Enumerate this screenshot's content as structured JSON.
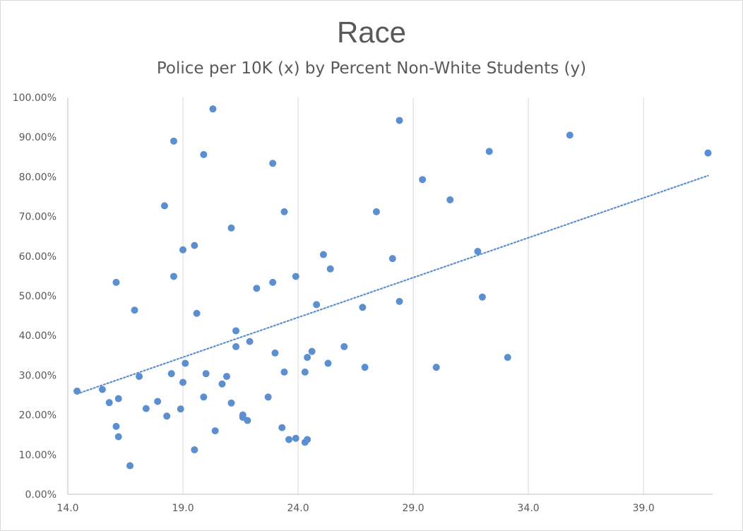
{
  "chart_data": {
    "type": "scatter",
    "title": "Race",
    "subtitle": "Police per 10K (x) by Percent Non-White Students (y)",
    "xlim": [
      14.0,
      42.0
    ],
    "ylim": [
      0,
      1.0
    ],
    "x_ticks": [
      "14.0",
      "19.0",
      "24.0",
      "29.0",
      "34.0",
      "39.0"
    ],
    "x_tick_values": [
      14,
      19,
      24,
      29,
      34,
      39
    ],
    "y_ticks": [
      "0.00%",
      "10.00%",
      "20.00%",
      "30.00%",
      "40.00%",
      "50.00%",
      "60.00%",
      "70.00%",
      "80.00%",
      "90.00%",
      "100.00%"
    ],
    "y_tick_values": [
      0,
      0.1,
      0.2,
      0.3,
      0.4,
      0.5,
      0.6,
      0.7,
      0.8,
      0.9,
      1.0
    ],
    "gridlines": "vertical",
    "point_color": "#5b8fd0",
    "trendline": {
      "type": "linear",
      "style": "dotted",
      "color": "#5b8fd0",
      "x": [
        14.4,
        41.8
      ],
      "y": [
        0.253,
        0.803
      ]
    },
    "points": [
      {
        "x": 14.4,
        "y": 0.26
      },
      {
        "x": 15.5,
        "y": 0.264
      },
      {
        "x": 15.8,
        "y": 0.231
      },
      {
        "x": 16.1,
        "y": 0.534
      },
      {
        "x": 16.1,
        "y": 0.171
      },
      {
        "x": 16.2,
        "y": 0.145
      },
      {
        "x": 16.2,
        "y": 0.241
      },
      {
        "x": 16.7,
        "y": 0.072
      },
      {
        "x": 16.9,
        "y": 0.464
      },
      {
        "x": 17.1,
        "y": 0.297
      },
      {
        "x": 17.4,
        "y": 0.216
      },
      {
        "x": 17.9,
        "y": 0.234
      },
      {
        "x": 18.2,
        "y": 0.727
      },
      {
        "x": 18.3,
        "y": 0.197
      },
      {
        "x": 18.5,
        "y": 0.304
      },
      {
        "x": 18.6,
        "y": 0.89
      },
      {
        "x": 18.6,
        "y": 0.549
      },
      {
        "x": 18.9,
        "y": 0.215
      },
      {
        "x": 19.0,
        "y": 0.616
      },
      {
        "x": 19.0,
        "y": 0.282
      },
      {
        "x": 19.1,
        "y": 0.33
      },
      {
        "x": 19.5,
        "y": 0.627
      },
      {
        "x": 19.5,
        "y": 0.112
      },
      {
        "x": 19.6,
        "y": 0.456
      },
      {
        "x": 19.9,
        "y": 0.856
      },
      {
        "x": 19.9,
        "y": 0.245
      },
      {
        "x": 20.0,
        "y": 0.304
      },
      {
        "x": 20.3,
        "y": 0.971
      },
      {
        "x": 20.4,
        "y": 0.16
      },
      {
        "x": 20.7,
        "y": 0.278
      },
      {
        "x": 20.9,
        "y": 0.297
      },
      {
        "x": 21.1,
        "y": 0.671
      },
      {
        "x": 21.1,
        "y": 0.23
      },
      {
        "x": 21.3,
        "y": 0.412
      },
      {
        "x": 21.3,
        "y": 0.372
      },
      {
        "x": 21.6,
        "y": 0.2
      },
      {
        "x": 21.6,
        "y": 0.194
      },
      {
        "x": 21.8,
        "y": 0.186
      },
      {
        "x": 21.9,
        "y": 0.385
      },
      {
        "x": 22.2,
        "y": 0.519
      },
      {
        "x": 22.7,
        "y": 0.245
      },
      {
        "x": 22.9,
        "y": 0.834
      },
      {
        "x": 22.9,
        "y": 0.534
      },
      {
        "x": 23.0,
        "y": 0.356
      },
      {
        "x": 23.3,
        "y": 0.168
      },
      {
        "x": 23.4,
        "y": 0.712
      },
      {
        "x": 23.4,
        "y": 0.308
      },
      {
        "x": 23.6,
        "y": 0.138
      },
      {
        "x": 23.9,
        "y": 0.141
      },
      {
        "x": 23.9,
        "y": 0.549
      },
      {
        "x": 24.3,
        "y": 0.131
      },
      {
        "x": 24.3,
        "y": 0.308
      },
      {
        "x": 24.4,
        "y": 0.345
      },
      {
        "x": 24.4,
        "y": 0.138
      },
      {
        "x": 24.6,
        "y": 0.36
      },
      {
        "x": 24.8,
        "y": 0.478
      },
      {
        "x": 25.1,
        "y": 0.604
      },
      {
        "x": 25.3,
        "y": 0.33
      },
      {
        "x": 25.4,
        "y": 0.568
      },
      {
        "x": 26.0,
        "y": 0.372
      },
      {
        "x": 26.8,
        "y": 0.471
      },
      {
        "x": 26.9,
        "y": 0.32
      },
      {
        "x": 27.4,
        "y": 0.712
      },
      {
        "x": 28.1,
        "y": 0.594
      },
      {
        "x": 28.4,
        "y": 0.942
      },
      {
        "x": 28.4,
        "y": 0.486
      },
      {
        "x": 29.4,
        "y": 0.793
      },
      {
        "x": 30.0,
        "y": 0.32
      },
      {
        "x": 30.6,
        "y": 0.742
      },
      {
        "x": 31.8,
        "y": 0.612
      },
      {
        "x": 32.0,
        "y": 0.497
      },
      {
        "x": 32.3,
        "y": 0.864
      },
      {
        "x": 33.1,
        "y": 0.345
      },
      {
        "x": 35.8,
        "y": 0.905
      },
      {
        "x": 41.8,
        "y": 0.86
      }
    ]
  }
}
